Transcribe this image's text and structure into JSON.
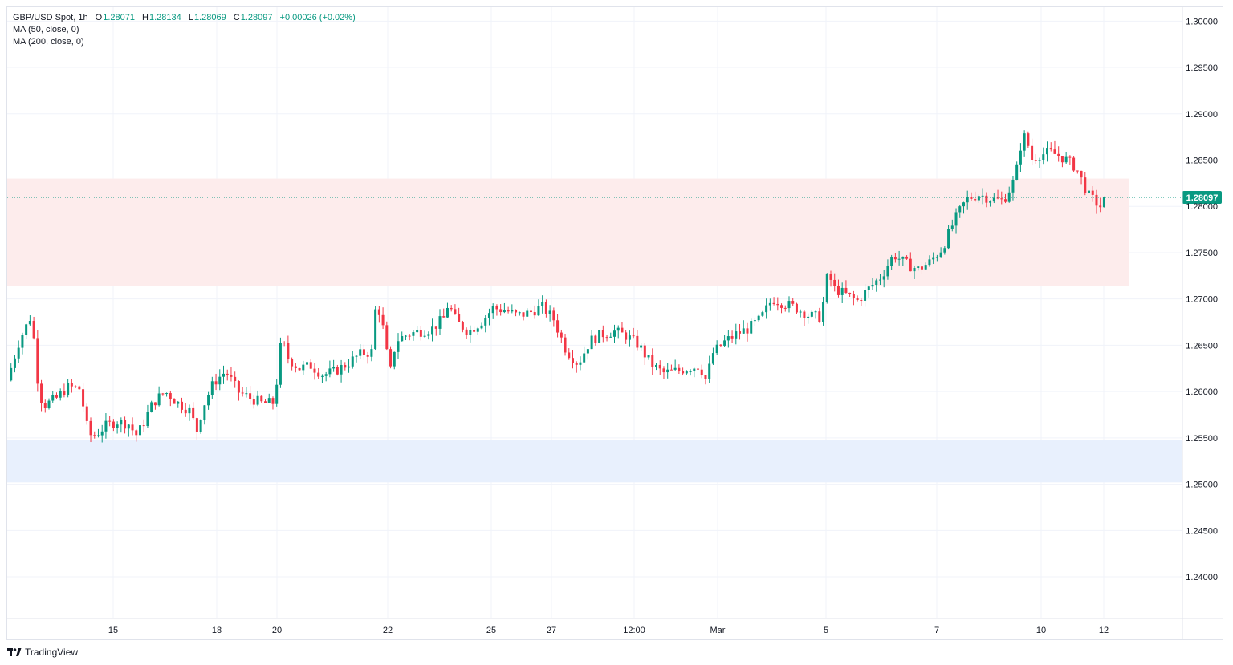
{
  "header": {
    "symbol": "GBP/USD Spot",
    "interval": "1h",
    "open_label": "O",
    "open": "1.28071",
    "high_label": "H",
    "high": "1.28134",
    "low_label": "L",
    "low": "1.28069",
    "close_label": "C",
    "close": "1.28097",
    "change": "+0.00026 (+0.02%)",
    "indicators": [
      "MA (50, close, 0)",
      "MA (200, close, 0)"
    ]
  },
  "footer": {
    "brand": "TradingView"
  },
  "colors": {
    "up": "#089981",
    "down": "#f23645",
    "resistance_zone": "#fdecec",
    "support_zone": "#e8f0fd",
    "grid": "#f0f3fa",
    "price_tag": "#089981"
  },
  "chart_data": {
    "type": "candlestick",
    "ylim": [
      1.2355,
      1.3015
    ],
    "y_ticks": [
      "1.30000",
      "1.29500",
      "1.29000",
      "1.28500",
      "1.28000",
      "1.27500",
      "1.27000",
      "1.26500",
      "1.26000",
      "1.25500",
      "1.25000",
      "1.24500",
      "1.24000"
    ],
    "x_ticks": [
      "15",
      "18",
      "20",
      "22",
      "25",
      "27",
      "12:00",
      "Mar",
      "5",
      "7",
      "10",
      "12"
    ],
    "last_price": "1.28097",
    "zones": [
      {
        "type": "resistance",
        "from": 1.2714,
        "to": 1.283
      },
      {
        "type": "support",
        "from": 1.2502,
        "to": 1.2548
      }
    ],
    "price_path": [
      [
        0,
        1.2612
      ],
      [
        1,
        1.2655
      ],
      [
        2,
        1.2683
      ],
      [
        2.6,
        1.26
      ],
      [
        3,
        1.2585
      ],
      [
        4,
        1.2592
      ],
      [
        5,
        1.2605
      ],
      [
        6,
        1.2603
      ],
      [
        6.6,
        1.256
      ],
      [
        7,
        1.255
      ],
      [
        8,
        1.2562
      ],
      [
        9,
        1.2568
      ],
      [
        10,
        1.2565
      ],
      [
        10.6,
        1.2553
      ],
      [
        11,
        1.256
      ],
      [
        12,
        1.2588
      ],
      [
        13,
        1.26
      ],
      [
        14,
        1.2588
      ],
      [
        15,
        1.258
      ],
      [
        15.7,
        1.2555
      ],
      [
        16,
        1.258
      ],
      [
        17,
        1.261
      ],
      [
        18,
        1.2622
      ],
      [
        19,
        1.26
      ],
      [
        20,
        1.2593
      ],
      [
        21,
        1.2587
      ],
      [
        22,
        1.2588
      ],
      [
        22.6,
        1.266
      ],
      [
        23,
        1.2638
      ],
      [
        24,
        1.2625
      ],
      [
        25,
        1.2628
      ],
      [
        26,
        1.2618
      ],
      [
        27,
        1.2622
      ],
      [
        28,
        1.263
      ],
      [
        29,
        1.264
      ],
      [
        30,
        1.2643
      ],
      [
        30.4,
        1.27
      ],
      [
        31,
        1.2665
      ],
      [
        31.5,
        1.2618
      ],
      [
        32,
        1.2655
      ],
      [
        33,
        1.2662
      ],
      [
        34,
        1.2665
      ],
      [
        35,
        1.2668
      ],
      [
        36,
        1.268
      ],
      [
        36.3,
        1.2695
      ],
      [
        37,
        1.2675
      ],
      [
        38,
        1.2665
      ],
      [
        39,
        1.2675
      ],
      [
        40,
        1.269
      ],
      [
        41,
        1.2688
      ],
      [
        42,
        1.2682
      ],
      [
        43,
        1.2685
      ],
      [
        44,
        1.2692
      ],
      [
        45,
        1.2678
      ],
      [
        46,
        1.2645
      ],
      [
        47,
        1.263
      ],
      [
        48,
        1.2655
      ],
      [
        49,
        1.2662
      ],
      [
        50,
        1.2665
      ],
      [
        51,
        1.266
      ],
      [
        52,
        1.265
      ],
      [
        53,
        1.263
      ],
      [
        54,
        1.262
      ],
      [
        55,
        1.2622
      ],
      [
        56,
        1.2625
      ],
      [
        57,
        1.2628
      ],
      [
        57.6,
        1.261
      ],
      [
        58,
        1.264
      ],
      [
        59,
        1.2653
      ],
      [
        60,
        1.2662
      ],
      [
        61,
        1.2668
      ],
      [
        62,
        1.2678
      ],
      [
        63,
        1.27
      ],
      [
        64,
        1.2695
      ],
      [
        65,
        1.269
      ],
      [
        66,
        1.2682
      ],
      [
        67,
        1.268
      ],
      [
        67.6,
        1.273
      ],
      [
        68,
        1.2712
      ],
      [
        69,
        1.2705
      ],
      [
        70,
        1.2698
      ],
      [
        71,
        1.2712
      ],
      [
        72,
        1.2725
      ],
      [
        73,
        1.2748
      ],
      [
        74,
        1.2738
      ],
      [
        75,
        1.2732
      ],
      [
        76,
        1.274
      ],
      [
        77,
        1.2755
      ],
      [
        78,
        1.2785
      ],
      [
        79,
        1.2808
      ],
      [
        80,
        1.2813
      ],
      [
        81,
        1.2808
      ],
      [
        82,
        1.2806
      ],
      [
        83,
        1.283
      ],
      [
        83.6,
        1.2878
      ],
      [
        84,
        1.287
      ],
      [
        84.3,
        1.285
      ],
      [
        85,
        1.2856
      ],
      [
        86,
        1.2858
      ],
      [
        87,
        1.2852
      ],
      [
        88,
        1.2842
      ],
      [
        89,
        1.2812
      ],
      [
        90,
        1.28
      ],
      [
        90.5,
        1.281
      ]
    ]
  }
}
